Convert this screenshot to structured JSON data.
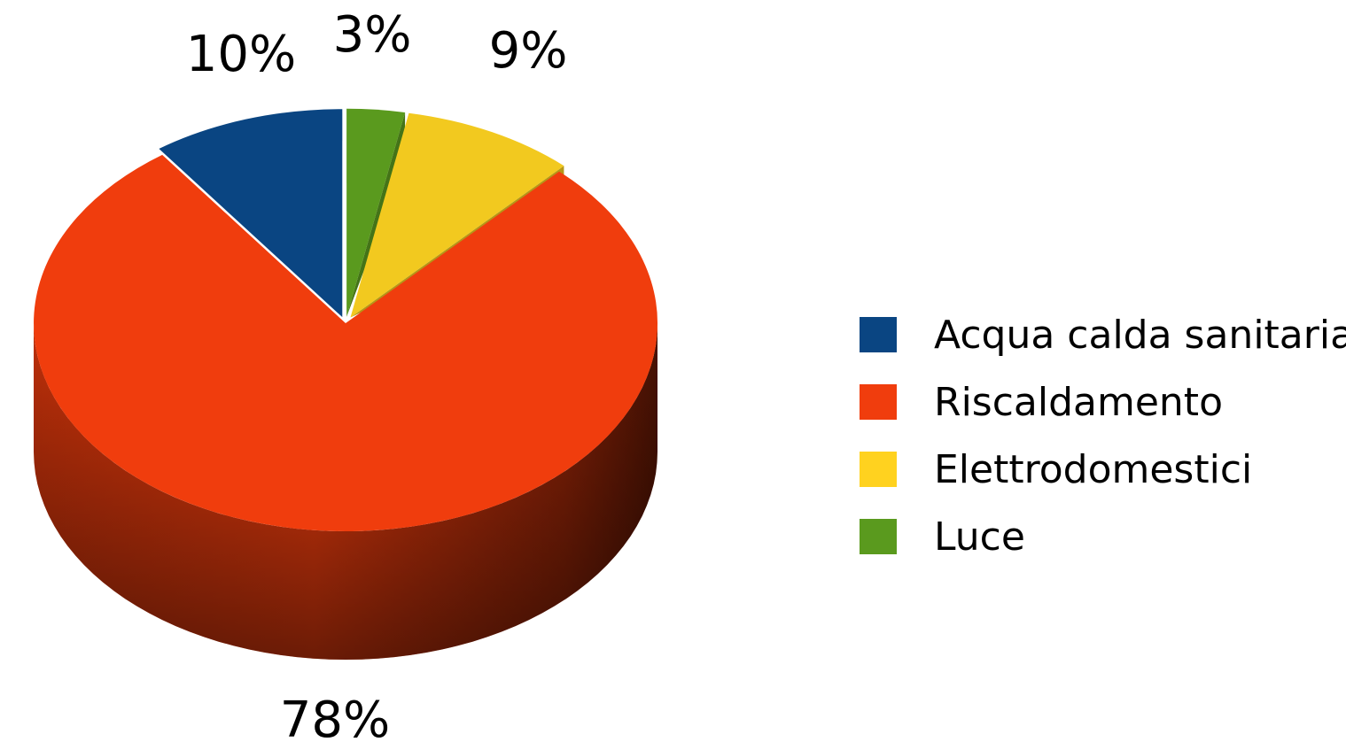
{
  "chart_data": {
    "type": "pie",
    "variant": "3d-exploded",
    "title": "",
    "slices": [
      {
        "label": "Acqua calda sanitaria",
        "value": 10,
        "value_label": "10%",
        "color": "#0A4582"
      },
      {
        "label": "Riscaldamento",
        "value": 78,
        "value_label": "78%",
        "color": "#F03D0D"
      },
      {
        "label": "Elettrodomestici",
        "value": 9,
        "value_label": "9%",
        "color": "#F2C91F"
      },
      {
        "label": "Luce",
        "value": 3,
        "value_label": "3%",
        "color": "#5A9A1E"
      }
    ],
    "legend": {
      "position": "right"
    }
  }
}
